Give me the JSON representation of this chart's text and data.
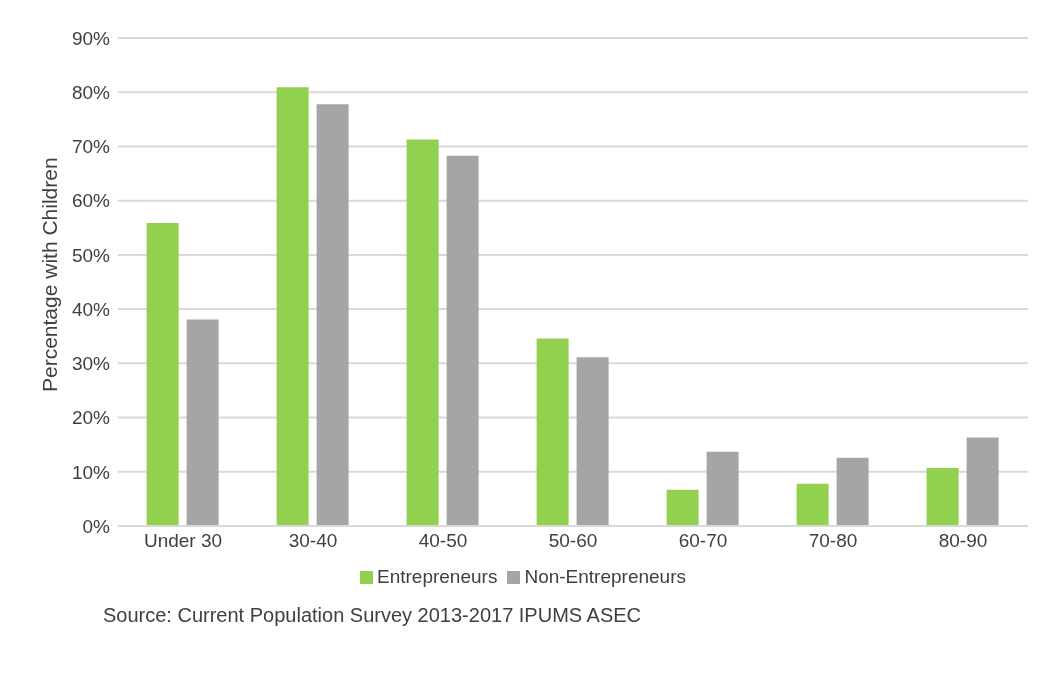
{
  "chart_data": {
    "type": "bar",
    "ylabel": "Percentage  with Children",
    "categories": [
      "Under 30",
      "30-40",
      "40-50",
      "50-60",
      "60-70",
      "70-80",
      "80-90"
    ],
    "series": [
      {
        "name": "Entrepreneurs",
        "color": "#92d050",
        "values": [
          55.9,
          80.9,
          71.3,
          34.6,
          6.7,
          7.8,
          10.7
        ]
      },
      {
        "name": "Non-Entrepreneurs",
        "color": "#a5a5a5",
        "values": [
          38.1,
          77.8,
          68.3,
          31.1,
          13.7,
          12.6,
          16.3
        ]
      }
    ],
    "ylim": [
      0,
      90
    ],
    "yticks": [
      {
        "value": 0,
        "label": "0%"
      },
      {
        "value": 10,
        "label": "10%"
      },
      {
        "value": 20,
        "label": "20%"
      },
      {
        "value": 30,
        "label": "30%"
      },
      {
        "value": 40,
        "label": "40%"
      },
      {
        "value": 50,
        "label": "50%"
      },
      {
        "value": 60,
        "label": "60%"
      },
      {
        "value": 70,
        "label": "70%"
      },
      {
        "value": 80,
        "label": "80%"
      },
      {
        "value": 90,
        "label": "90%"
      }
    ],
    "grid": "y",
    "legend": "bottom",
    "annotations": [
      "Source: Current  Population  Survey  2013-2017  IPUMS  ASEC"
    ]
  }
}
